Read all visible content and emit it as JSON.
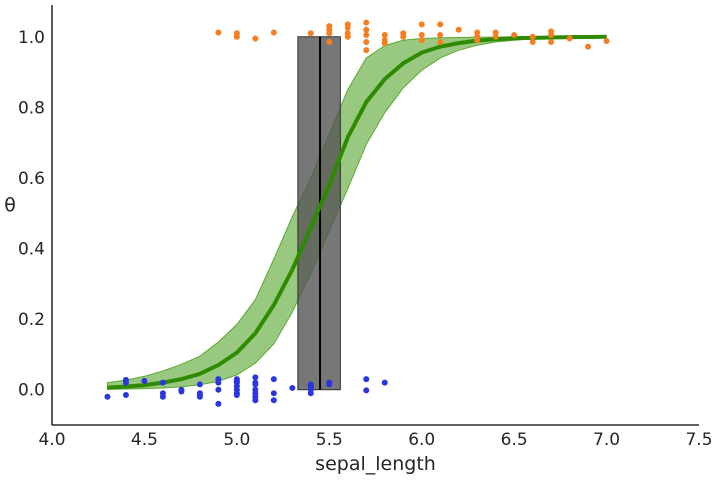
{
  "chart_data": {
    "type": "scatter",
    "xlabel": "sepal_length",
    "ylabel": "θ",
    "xlim": [
      4.0,
      7.5
    ],
    "ylim": [
      -0.1,
      1.09
    ],
    "xticks": [
      "4.0",
      "4.5",
      "5.0",
      "5.5",
      "6.0",
      "6.5",
      "7.0",
      "7.5"
    ],
    "yticks": [
      "0.0",
      "0.2",
      "0.4",
      "0.6",
      "0.8",
      "1.0"
    ],
    "grid": false,
    "colors": {
      "class0": "#2b35e0",
      "class1": "#f57e20",
      "curve": "#2e8b00",
      "band": "#5aa832",
      "boundary_box": "#555555",
      "boundary_line": "#000000"
    },
    "class0_points": [
      [
        4.3,
        -0.02
      ],
      [
        4.4,
        0.02
      ],
      [
        4.4,
        0.028
      ],
      [
        4.4,
        -0.015
      ],
      [
        4.5,
        0.025
      ],
      [
        4.6,
        0.02
      ],
      [
        4.6,
        -0.01
      ],
      [
        4.6,
        -0.02
      ],
      [
        4.7,
        -0.005
      ],
      [
        4.7,
        0.0
      ],
      [
        4.8,
        0.015
      ],
      [
        4.8,
        -0.01
      ],
      [
        4.8,
        -0.015
      ],
      [
        4.8,
        -0.02
      ],
      [
        4.9,
        0.03
      ],
      [
        4.9,
        0.02
      ],
      [
        4.9,
        0.0
      ],
      [
        4.9,
        -0.04
      ],
      [
        5.0,
        0.03
      ],
      [
        5.0,
        0.02
      ],
      [
        5.0,
        0.01
      ],
      [
        5.0,
        0.0
      ],
      [
        5.0,
        -0.01
      ],
      [
        5.0,
        -0.015
      ],
      [
        5.0,
        0.025
      ],
      [
        5.1,
        0.035
      ],
      [
        5.1,
        0.02
      ],
      [
        5.1,
        0.015
      ],
      [
        5.1,
        0.0
      ],
      [
        5.1,
        -0.01
      ],
      [
        5.1,
        -0.02
      ],
      [
        5.1,
        -0.03
      ],
      [
        5.2,
        0.03
      ],
      [
        5.2,
        -0.01
      ],
      [
        5.2,
        -0.03
      ],
      [
        5.3,
        0.005
      ],
      [
        5.4,
        0.015
      ],
      [
        5.4,
        0.01
      ],
      [
        5.4,
        0.005
      ],
      [
        5.4,
        0.0
      ],
      [
        5.4,
        -0.01
      ],
      [
        5.5,
        0.02
      ],
      [
        5.5,
        0.015
      ],
      [
        5.7,
        0.03
      ],
      [
        5.7,
        -0.002
      ],
      [
        5.8,
        0.02
      ]
    ],
    "class1_points": [
      [
        4.9,
        1.012
      ],
      [
        5.0,
        1.01
      ],
      [
        5.0,
        1.0
      ],
      [
        5.1,
        0.995
      ],
      [
        5.2,
        1.012
      ],
      [
        5.4,
        1.01
      ],
      [
        5.5,
        1.03
      ],
      [
        5.5,
        1.02
      ],
      [
        5.5,
        1.01
      ],
      [
        5.5,
        0.985
      ],
      [
        5.6,
        1.035
      ],
      [
        5.6,
        1.025
      ],
      [
        5.6,
        1.01
      ],
      [
        5.6,
        1.0
      ],
      [
        5.7,
        1.04
      ],
      [
        5.7,
        1.02
      ],
      [
        5.7,
        1.005
      ],
      [
        5.7,
        0.985
      ],
      [
        5.7,
        0.962
      ],
      [
        5.8,
        1.005
      ],
      [
        5.8,
        0.99
      ],
      [
        5.8,
        0.982
      ],
      [
        5.9,
        1.01
      ],
      [
        5.9,
        1.0
      ],
      [
        6.0,
        1.035
      ],
      [
        6.0,
        1.005
      ],
      [
        6.0,
        0.99
      ],
      [
        6.1,
        1.035
      ],
      [
        6.1,
        1.005
      ],
      [
        6.1,
        0.985
      ],
      [
        6.2,
        1.02
      ],
      [
        6.3,
        1.012
      ],
      [
        6.3,
        1.0
      ],
      [
        6.3,
        0.99
      ],
      [
        6.4,
        1.012
      ],
      [
        6.4,
        1.0
      ],
      [
        6.5,
        1.005
      ],
      [
        6.6,
        1.0
      ],
      [
        6.6,
        0.985
      ],
      [
        6.7,
        1.005
      ],
      [
        6.7,
        0.985
      ],
      [
        6.7,
        1.015
      ],
      [
        6.8,
        0.995
      ],
      [
        6.9,
        0.972
      ],
      [
        7.0,
        0.988
      ]
    ],
    "curve": {
      "x": [
        4.3,
        4.4,
        4.5,
        4.6,
        4.7,
        4.8,
        4.9,
        5.0,
        5.1,
        5.2,
        5.3,
        5.4,
        5.5,
        5.6,
        5.7,
        5.8,
        5.9,
        6.0,
        6.1,
        6.2,
        6.3,
        6.4,
        6.5,
        6.6,
        6.7,
        6.8,
        6.9,
        7.0
      ],
      "mean": [
        0.006,
        0.009,
        0.013,
        0.02,
        0.03,
        0.045,
        0.07,
        0.105,
        0.16,
        0.24,
        0.34,
        0.46,
        0.58,
        0.715,
        0.815,
        0.88,
        0.925,
        0.955,
        0.972,
        0.982,
        0.989,
        0.993,
        0.996,
        0.997,
        0.998,
        0.999,
        0.9995,
        1.0
      ],
      "lower": [
        0.001,
        0.002,
        0.003,
        0.005,
        0.008,
        0.014,
        0.024,
        0.042,
        0.075,
        0.13,
        0.22,
        0.33,
        0.45,
        0.57,
        0.695,
        0.785,
        0.855,
        0.905,
        0.94,
        0.962,
        0.976,
        0.985,
        0.99,
        0.994,
        0.996,
        0.997,
        0.998,
        0.999
      ],
      "upper": [
        0.02,
        0.027,
        0.038,
        0.053,
        0.072,
        0.095,
        0.135,
        0.185,
        0.255,
        0.37,
        0.49,
        0.6,
        0.725,
        0.85,
        0.94,
        0.975,
        0.99,
        0.995,
        0.997,
        0.998,
        0.999,
        0.999,
        1.0,
        1.0,
        1.0,
        1.0,
        1.0,
        1.0
      ]
    },
    "decision_boundary": {
      "mean": 5.45,
      "low": 5.33,
      "high": 5.56
    }
  }
}
